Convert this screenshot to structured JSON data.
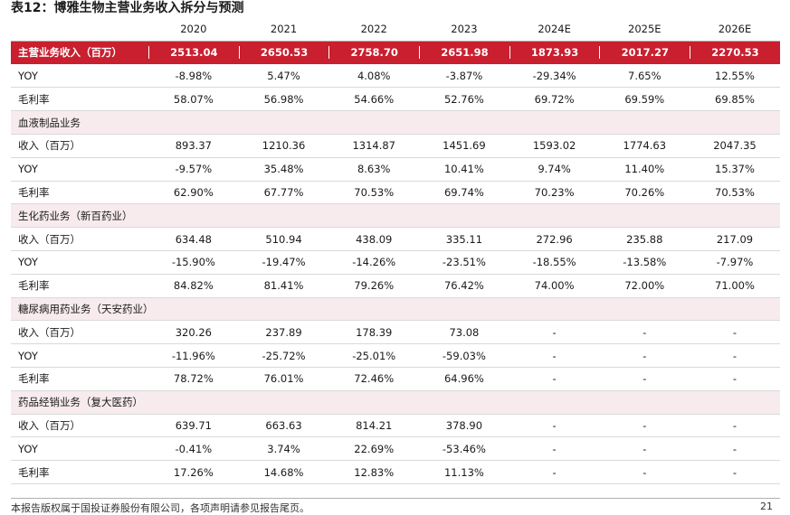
{
  "title": "表12：博雅生物主营业务收入拆分与预测",
  "header": [
    "2020",
    "2021",
    "2022",
    "2023",
    "2024E",
    "2025E",
    "2026E"
  ],
  "main": {
    "label": "主营业务收入（百万）",
    "values": [
      "2513.04",
      "2650.53",
      "2758.70",
      "2651.98",
      "1873.93",
      "2017.27",
      "2270.53"
    ]
  },
  "rows": [
    {
      "label": "YOY",
      "values": [
        "-8.98%",
        "5.47%",
        "4.08%",
        "-3.87%",
        "-29.34%",
        "7.65%",
        "12.55%"
      ]
    },
    {
      "label": "毛利率",
      "values": [
        "58.07%",
        "56.98%",
        "54.66%",
        "52.76%",
        "69.72%",
        "69.59%",
        "69.85%"
      ]
    },
    {
      "section": "血液制品业务"
    },
    {
      "label": "收入（百万）",
      "values": [
        "893.37",
        "1210.36",
        "1314.87",
        "1451.69",
        "1593.02",
        "1774.63",
        "2047.35"
      ]
    },
    {
      "label": "YOY",
      "values": [
        "-9.57%",
        "35.48%",
        "8.63%",
        "10.41%",
        "9.74%",
        "11.40%",
        "15.37%"
      ]
    },
    {
      "label": "毛利率",
      "values": [
        "62.90%",
        "67.77%",
        "70.53%",
        "69.74%",
        "70.23%",
        "70.26%",
        "70.53%"
      ]
    },
    {
      "section": "生化药业务（新百药业）"
    },
    {
      "label": "收入（百万）",
      "values": [
        "634.48",
        "510.94",
        "438.09",
        "335.11",
        "272.96",
        "235.88",
        "217.09"
      ]
    },
    {
      "label": "YOY",
      "values": [
        "-15.90%",
        "-19.47%",
        "-14.26%",
        "-23.51%",
        "-18.55%",
        "-13.58%",
        "-7.97%"
      ]
    },
    {
      "label": "毛利率",
      "values": [
        "84.82%",
        "81.41%",
        "79.26%",
        "76.42%",
        "74.00%",
        "72.00%",
        "71.00%"
      ]
    },
    {
      "section": "糖尿病用药业务（天安药业）"
    },
    {
      "label": "收入（百万）",
      "values": [
        "320.26",
        "237.89",
        "178.39",
        "73.08",
        "-",
        "-",
        "-"
      ]
    },
    {
      "label": "YOY",
      "values": [
        "-11.96%",
        "-25.72%",
        "-25.01%",
        "-59.03%",
        "-",
        "-",
        "-"
      ]
    },
    {
      "label": "毛利率",
      "values": [
        "78.72%",
        "76.01%",
        "72.46%",
        "64.96%",
        "-",
        "-",
        "-"
      ]
    },
    {
      "section": "药品经销业务（复大医药）"
    },
    {
      "label": "收入（百万）",
      "values": [
        "639.71",
        "663.63",
        "814.21",
        "378.90",
        "-",
        "-",
        "-"
      ]
    },
    {
      "label": "YOY",
      "values": [
        "-0.41%",
        "3.74%",
        "22.69%",
        "-53.46%",
        "-",
        "-",
        "-"
      ]
    },
    {
      "label": "毛利率",
      "values": [
        "17.26%",
        "14.68%",
        "12.83%",
        "11.13%",
        "-",
        "-",
        "-"
      ]
    }
  ],
  "footer": {
    "note": "本报告版权属于国投证券股份有限公司，各项声明请参见报告尾页。",
    "page": "21"
  },
  "colors": {
    "main_row_bg": "#c91f2e",
    "section_bg": "#f7ebee"
  }
}
